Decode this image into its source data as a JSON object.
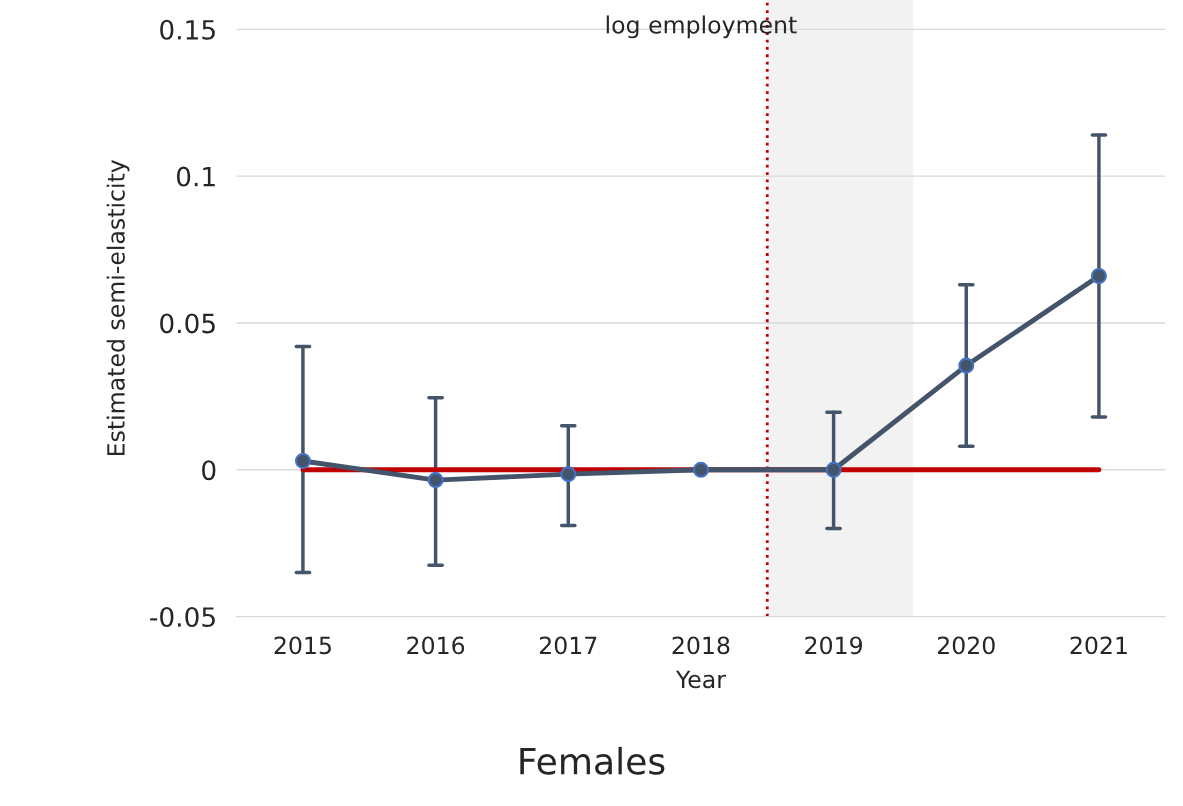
{
  "chart_data": {
    "type": "line",
    "title": "log employment",
    "xlabel": "Year",
    "ylabel": "Estimated semi-elasticity",
    "x": [
      2015,
      2016,
      2017,
      2018,
      2019,
      2020,
      2021
    ],
    "xlim": [
      2014.5,
      2021.5
    ],
    "xticks": [
      2015,
      2016,
      2017,
      2018,
      2019,
      2020,
      2021
    ],
    "ylim": [
      -0.05,
      0.16
    ],
    "yticks": [
      {
        "value": -0.05,
        "label": "-0.05"
      },
      0,
      0.05,
      0.1,
      0.15
    ],
    "grid": "y",
    "marker": "circle",
    "line_style": "solid",
    "series": [
      {
        "color": "#c00000",
        "values": [
          0,
          0,
          0,
          0,
          0,
          0,
          0
        ],
        "marker": "none"
      },
      {
        "color": "#44546a",
        "values": [
          0.003,
          -0.0035,
          -0.0015,
          0,
          0,
          0.0355,
          0.066
        ],
        "errors": [
          [
            -0.035,
            0.042
          ],
          [
            -0.0325,
            0.0245
          ],
          [
            -0.019,
            0.015
          ],
          null,
          [
            -0.02,
            0.0196
          ],
          [
            0.008,
            0.063
          ],
          [
            0.018,
            0.114
          ]
        ]
      }
    ],
    "ref_lines": [
      {
        "axis": "x",
        "value": 2018.5,
        "color": "#c00000",
        "line_style": "dotted"
      }
    ],
    "bands": [
      {
        "axis": "x",
        "from": 2018.5,
        "to": 2019.6,
        "color": "#f2f2f2"
      }
    ],
    "annotations": [
      "Females"
    ]
  }
}
